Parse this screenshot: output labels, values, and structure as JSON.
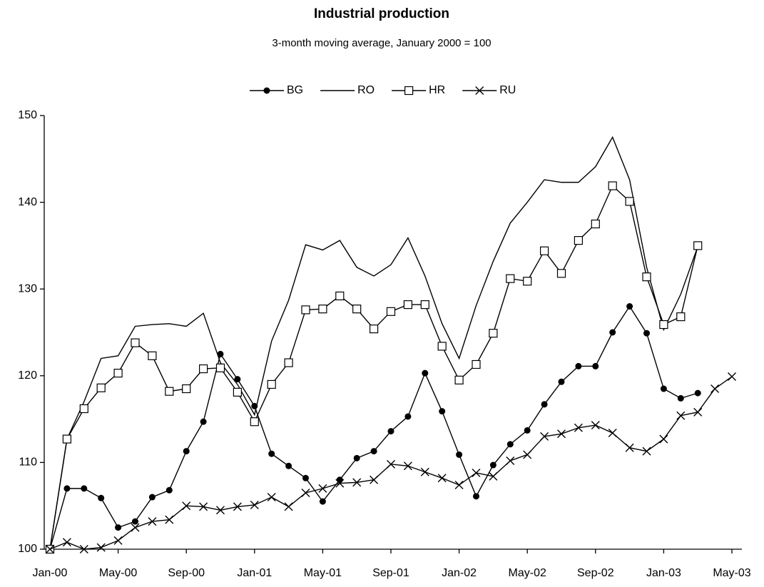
{
  "chart_data": {
    "type": "line",
    "title": "Industrial production",
    "subtitle": "3-month moving average, January 2000 = 100",
    "legend": "top",
    "categories": [
      "Jan-00",
      null,
      null,
      null,
      "May-00",
      null,
      null,
      null,
      "Sep-00",
      null,
      null,
      null,
      "Jan-01",
      null,
      null,
      null,
      "May-01",
      null,
      null,
      null,
      "Sep-01",
      null,
      null,
      null,
      "Jan-02",
      null,
      null,
      null,
      "May-02",
      null,
      null,
      null,
      "Sep-02",
      null,
      null,
      null,
      "Jan-03",
      null,
      null,
      null,
      "May-03"
    ],
    "ylim": [
      100,
      150
    ],
    "yticks": [
      100,
      110,
      120,
      130,
      140,
      150
    ],
    "series": [
      {
        "name": "BG",
        "color": "#000000",
        "marker": "circle",
        "values": [
          100,
          107,
          107,
          105.9,
          102.5,
          103.2,
          106,
          106.8,
          111.3,
          114.7,
          122.5,
          119.6,
          116.5,
          111,
          109.6,
          108.2,
          105.5,
          108,
          110.5,
          111.3,
          113.6,
          115.3,
          120.3,
          115.9,
          110.9,
          106.1,
          109.7,
          112.1,
          113.7,
          116.7,
          119.3,
          121.1,
          121.1,
          125,
          128,
          124.9,
          118.5,
          117.4,
          118,
          null,
          null
        ]
      },
      {
        "name": "RO",
        "color": "#000000",
        "marker": "none",
        "values": [
          100,
          112.7,
          117,
          122,
          122.3,
          125.7,
          125.9,
          126,
          125.7,
          127.2,
          121.5,
          119,
          115.5,
          124,
          128.7,
          135.1,
          134.5,
          135.6,
          132.5,
          131.5,
          132.8,
          135.9,
          131.5,
          126,
          122,
          128.1,
          133.2,
          137.6,
          140,
          142.6,
          142.3,
          142.3,
          144.1,
          147.5,
          142.6,
          132.5,
          125.3,
          129.4,
          134.9,
          null,
          null
        ]
      },
      {
        "name": "HR",
        "color": "#000000",
        "marker": "square",
        "values": [
          100,
          112.7,
          116.2,
          118.6,
          120.3,
          123.8,
          122.3,
          118.2,
          118.5,
          120.8,
          120.9,
          118.1,
          114.7,
          119,
          121.5,
          127.6,
          127.7,
          129.2,
          127.7,
          125.4,
          127.4,
          128.2,
          128.2,
          123.4,
          119.5,
          121.3,
          124.9,
          131.2,
          130.9,
          134.4,
          131.8,
          135.6,
          137.5,
          141.9,
          140.1,
          131.4,
          125.9,
          126.8,
          135,
          null,
          null
        ]
      },
      {
        "name": "RU",
        "color": "#000000",
        "marker": "cross",
        "values": [
          100,
          100.8,
          100,
          100.2,
          101,
          102.5,
          103.2,
          103.4,
          105,
          104.9,
          104.5,
          104.9,
          105.1,
          106,
          104.9,
          106.5,
          107,
          107.6,
          107.7,
          108,
          109.8,
          109.6,
          108.9,
          108.2,
          107.4,
          108.8,
          108.4,
          110.2,
          110.9,
          113,
          113.3,
          114,
          114.3,
          113.4,
          111.7,
          111.3,
          112.7,
          115.4,
          115.8,
          118.5,
          119.9
        ]
      }
    ]
  }
}
